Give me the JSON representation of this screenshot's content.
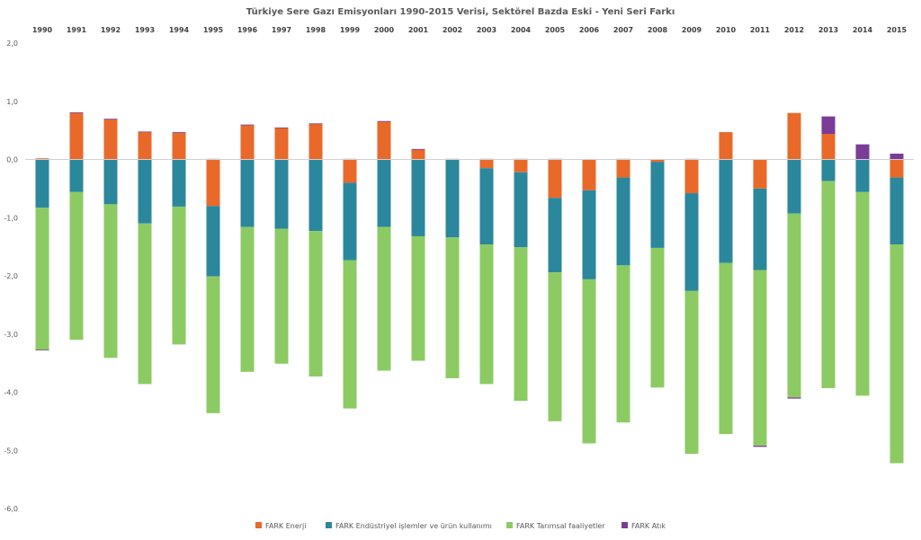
{
  "chart_data": {
    "type": "bar",
    "stacked": true,
    "title": "Türkiye Sere Gazı Emisyonları 1990-2015 Verisi,  Sektörel Bazda Eski - Yeni Seri Farkı",
    "xlabel": "",
    "ylabel": "",
    "categories": [
      "1990",
      "1991",
      "1992",
      "1993",
      "1994",
      "1995",
      "1996",
      "1997",
      "1998",
      "1999",
      "2000",
      "2001",
      "2002",
      "2003",
      "2004",
      "2005",
      "2006",
      "2007",
      "2008",
      "2009",
      "2010",
      "2011",
      "2012",
      "2013",
      "2014",
      "2015"
    ],
    "x_tick_position": "top",
    "yticks": [
      "2,0",
      "1,0",
      "0,0",
      "-1,0",
      "-2,0",
      "-3,0",
      "-4,0",
      "-5,0",
      "-6,0"
    ],
    "ylim": [
      -6,
      2
    ],
    "grid": false,
    "legend_position": "bottom",
    "series": [
      {
        "name": "FARK Enerji",
        "color": "#E8692A",
        "values": [
          0.02,
          0.8,
          0.69,
          0.47,
          0.46,
          -0.8,
          0.59,
          0.54,
          0.61,
          -0.4,
          0.65,
          0.17,
          0.0,
          -0.15,
          -0.22,
          -0.66,
          -0.53,
          -0.31,
          -0.04,
          -0.58,
          0.47,
          -0.5,
          0.8,
          0.44,
          0.0,
          -0.31
        ]
      },
      {
        "name": "FARK Endüstriyel işlemler ve ürün kullanımı",
        "color": "#2B879C",
        "values": [
          -0.83,
          -0.56,
          -0.77,
          -1.1,
          -0.81,
          -1.21,
          -1.16,
          -1.19,
          -1.23,
          -1.33,
          -1.16,
          -1.32,
          -1.34,
          -1.31,
          -1.29,
          -1.28,
          -1.53,
          -1.51,
          -1.48,
          -1.68,
          -1.78,
          -1.4,
          -0.93,
          -0.37,
          -0.56,
          -1.15
        ]
      },
      {
        "name": "FARK Tarımsal faaliyetler",
        "color": "#8CCB63",
        "values": [
          -2.44,
          -2.54,
          -2.64,
          -2.76,
          -2.37,
          -2.35,
          -2.49,
          -2.32,
          -2.5,
          -2.55,
          -2.47,
          -2.14,
          -2.42,
          -2.4,
          -2.64,
          -2.56,
          -2.82,
          -2.7,
          -2.4,
          -2.8,
          -2.94,
          -3.02,
          -3.16,
          -3.56,
          -3.5,
          -3.76
        ]
      },
      {
        "name": "FARK Atık",
        "color": "#7A3C97",
        "values": [
          -0.01,
          0.01,
          0.01,
          0.01,
          0.01,
          0.01,
          0.01,
          0.01,
          0.01,
          0.01,
          0.01,
          0.01,
          0.01,
          0.01,
          0.01,
          0.01,
          0.0,
          0.01,
          0.0,
          0.01,
          0.0,
          -0.02,
          -0.02,
          0.3,
          0.26,
          0.1
        ]
      }
    ]
  }
}
